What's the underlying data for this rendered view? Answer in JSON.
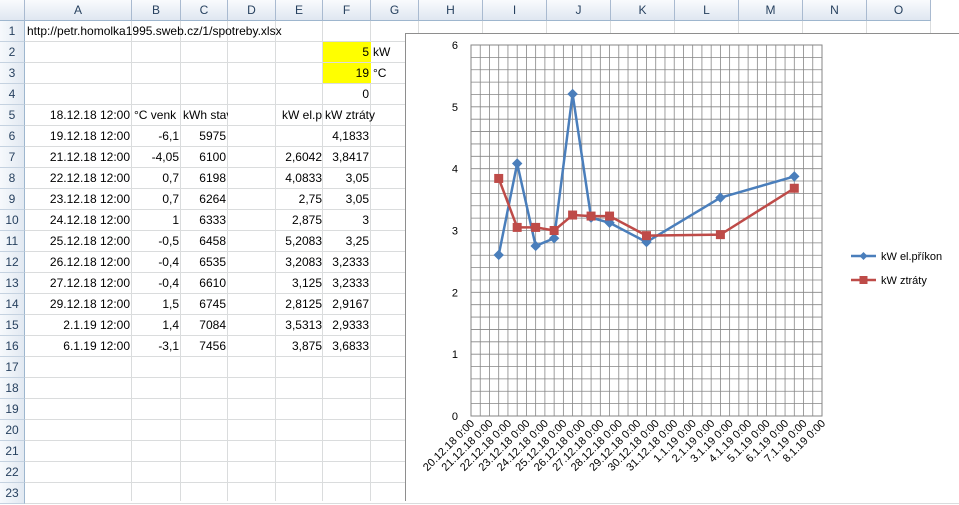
{
  "columns": [
    "A",
    "B",
    "C",
    "D",
    "E",
    "F",
    "G",
    "H",
    "I",
    "J",
    "K",
    "L",
    "M",
    "N",
    "O"
  ],
  "rows": [
    "1",
    "2",
    "3",
    "4",
    "5",
    "6",
    "7",
    "8",
    "9",
    "10",
    "11",
    "12",
    "13",
    "14",
    "15",
    "16",
    "17",
    "18",
    "19",
    "20",
    "21",
    "22",
    "23"
  ],
  "url": "http://petr.homolka1995.sweb.cz/1/spotreby.xlsx",
  "f2": "5",
  "g2": "kW",
  "f3": "19",
  "g3": "°C",
  "f4": "0",
  "a5": "18.12.18 12:00",
  "b5": "°C venk",
  "c5": "kWh stav",
  "e5": "kW el.p",
  "f5": "kW ztráty",
  "table": [
    {
      "a": "19.12.18 12:00",
      "b": "-6,1",
      "c": "5975",
      "e": "",
      "f": "4,1833"
    },
    {
      "a": "21.12.18 12:00",
      "b": "-4,05",
      "c": "6100",
      "e": "2,6042",
      "f": "3,8417"
    },
    {
      "a": "22.12.18 12:00",
      "b": "0,7",
      "c": "6198",
      "e": "4,0833",
      "f": "3,05"
    },
    {
      "a": "23.12.18 12:00",
      "b": "0,7",
      "c": "6264",
      "e": "2,75",
      "f": "3,05"
    },
    {
      "a": "24.12.18 12:00",
      "b": "1",
      "c": "6333",
      "e": "2,875",
      "f": "3"
    },
    {
      "a": "25.12.18 12:00",
      "b": "-0,5",
      "c": "6458",
      "e": "5,2083",
      "f": "3,25"
    },
    {
      "a": "26.12.18 12:00",
      "b": "-0,4",
      "c": "6535",
      "e": "3,2083",
      "f": "3,2333"
    },
    {
      "a": "27.12.18 12:00",
      "b": "-0,4",
      "c": "6610",
      "e": "3,125",
      "f": "3,2333"
    },
    {
      "a": "29.12.18 12:00",
      "b": "1,5",
      "c": "6745",
      "e": "2,8125",
      "f": "2,9167"
    },
    {
      "a": "2.1.19 12:00",
      "b": "1,4",
      "c": "7084",
      "e": "3,5313",
      "f": "2,9333"
    },
    {
      "a": "6.1.19 12:00",
      "b": "-3,1",
      "c": "7456",
      "e": "3,875",
      "f": "3,6833"
    }
  ],
  "chart_data": {
    "type": "line",
    "ylim": [
      0,
      6
    ],
    "yticks": [
      "0",
      "1",
      "2",
      "3",
      "4",
      "5",
      "6"
    ],
    "xlabels": [
      "20.12.18 0:00",
      "21.12.18 0:00",
      "22.12.18 0:00",
      "23.12.18 0:00",
      "24.12.18 0:00",
      "25.12.18 0:00",
      "26.12.18 0:00",
      "27.12.18 0:00",
      "28.12.18 0:00",
      "29.12.18 0:00",
      "30.12.18 0:00",
      "31.12.18 0:00",
      "1.1.19 0:00",
      "2.1.19 0:00",
      "3.1.19 0:00",
      "4.1.19 0:00",
      "5.1.19 0:00",
      "6.1.19 0:00",
      "7.1.19 0:00",
      "8.1.19 0:00"
    ],
    "x_start": "20.12.18 0:00",
    "x_end": "8.1.19 0:00",
    "series": [
      {
        "name": "kW el.příkon",
        "color": "#4a7ebb",
        "marker": "diamond",
        "points": [
          [
            "21.12.18 12:00",
            2.6042
          ],
          [
            "22.12.18 12:00",
            4.0833
          ],
          [
            "23.12.18 12:00",
            2.75
          ],
          [
            "24.12.18 12:00",
            2.875
          ],
          [
            "25.12.18 12:00",
            5.2083
          ],
          [
            "26.12.18 12:00",
            3.2083
          ],
          [
            "27.12.18 12:00",
            3.125
          ],
          [
            "29.12.18 12:00",
            2.8125
          ],
          [
            "2.1.19 12:00",
            3.5313
          ],
          [
            "6.1.19 12:00",
            3.875
          ]
        ]
      },
      {
        "name": "kW ztráty",
        "color": "#be4b48",
        "marker": "square",
        "points": [
          [
            "21.12.18 12:00",
            3.8417
          ],
          [
            "22.12.18 12:00",
            3.05
          ],
          [
            "23.12.18 12:00",
            3.05
          ],
          [
            "24.12.18 12:00",
            3
          ],
          [
            "25.12.18 12:00",
            3.25
          ],
          [
            "26.12.18 12:00",
            3.2333
          ],
          [
            "27.12.18 12:00",
            3.2333
          ],
          [
            "29.12.18 12:00",
            2.9167
          ],
          [
            "2.1.19 12:00",
            2.9333
          ],
          [
            "6.1.19 12:00",
            3.6833
          ]
        ]
      }
    ],
    "legend": "right"
  }
}
